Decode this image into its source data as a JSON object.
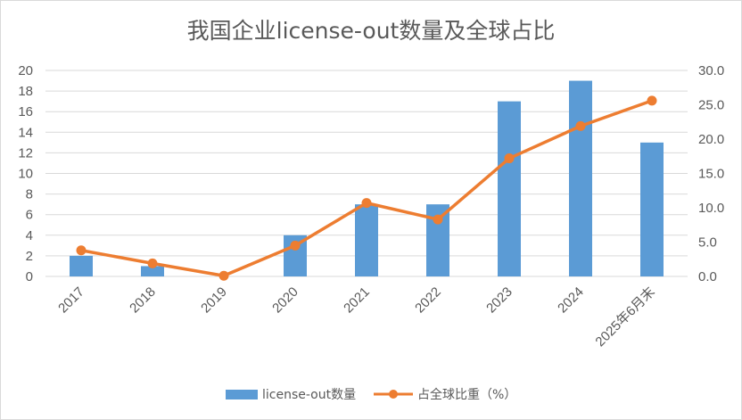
{
  "chart_data": {
    "type": "bar",
    "title": "我国企业license-out数量及全球占比",
    "categories": [
      "2017",
      "2018",
      "2019",
      "2020",
      "2021",
      "2022",
      "2023",
      "2024",
      "2025年6月末"
    ],
    "series": [
      {
        "name": "license-out数量",
        "type": "bar",
        "axis": "left",
        "color": "#5b9bd5",
        "values": [
          2,
          1,
          0,
          4,
          7,
          7,
          17,
          19,
          13
        ]
      },
      {
        "name": "占全球比重（%）",
        "type": "line",
        "axis": "right",
        "color": "#ed7d31",
        "values": [
          3.8,
          1.9,
          0.1,
          4.5,
          10.7,
          8.3,
          17.2,
          21.9,
          25.6
        ]
      }
    ],
    "y_left": {
      "min": 0,
      "max": 20,
      "step": 2,
      "ticks": [
        "0",
        "2",
        "4",
        "6",
        "8",
        "10",
        "12",
        "14",
        "16",
        "18",
        "20"
      ]
    },
    "y_right": {
      "min": 0,
      "max": 30,
      "step": 5,
      "ticks": [
        "0.0",
        "5.0",
        "10.0",
        "15.0",
        "20.0",
        "25.0",
        "30.0"
      ]
    },
    "grid": true,
    "legend": "bottom"
  }
}
